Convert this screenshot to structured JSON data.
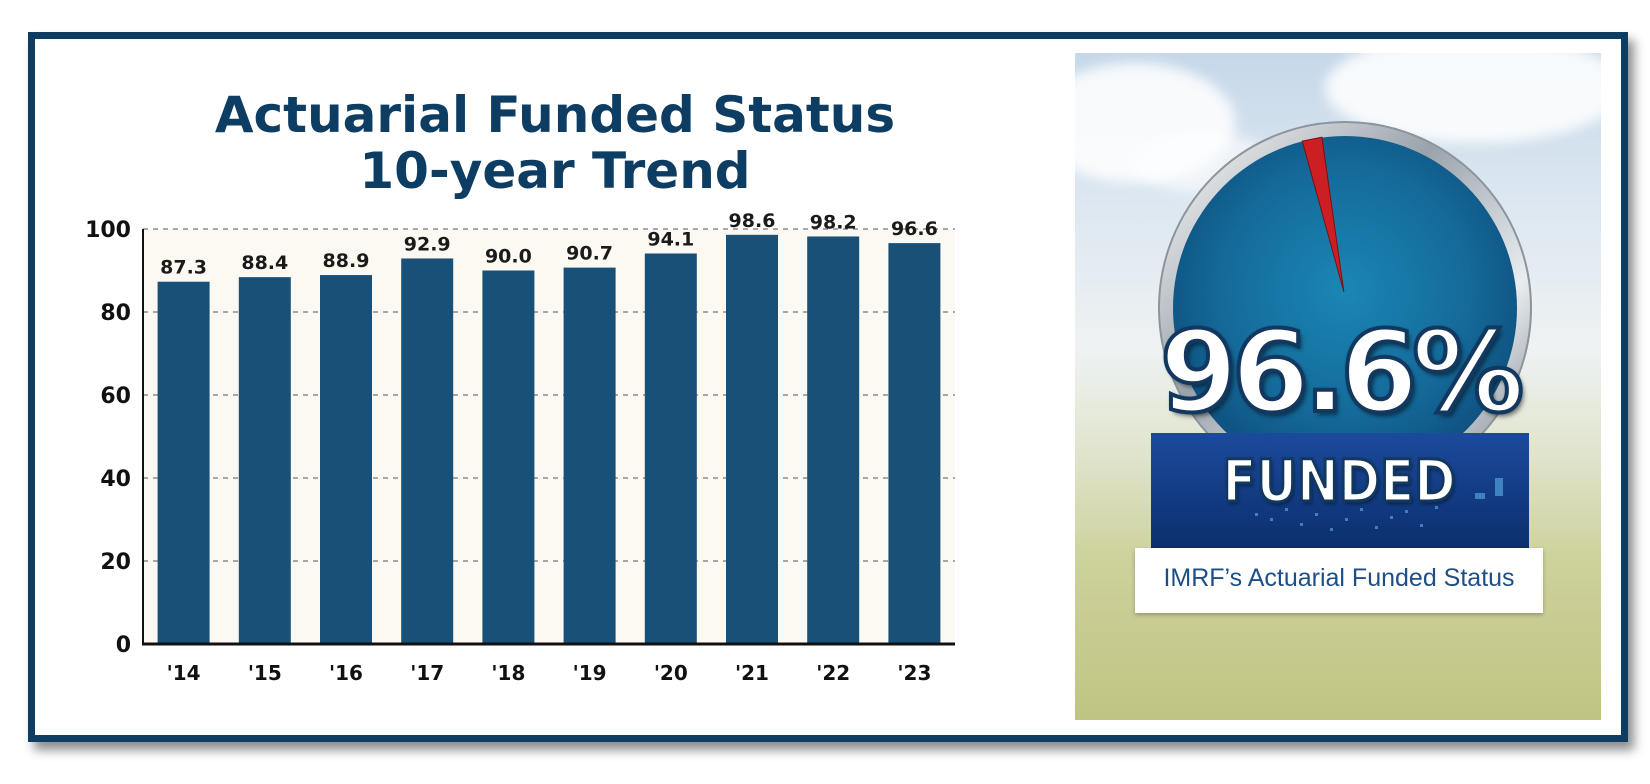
{
  "chart_data": {
    "type": "bar",
    "title": [
      "Actuarial Funded Status",
      "10-year Trend"
    ],
    "categories": [
      "'14",
      "'15",
      "'16",
      "'17",
      "'18",
      "'19",
      "'20",
      "'21",
      "'22",
      "'23"
    ],
    "values": [
      87.3,
      88.4,
      88.9,
      92.9,
      90.0,
      90.7,
      94.1,
      98.6,
      98.2,
      96.6
    ],
    "value_labels": [
      "87.3",
      "88.4",
      "88.9",
      "92.9",
      "90.0",
      "90.7",
      "94.1",
      "98.6",
      "98.2",
      "96.6"
    ],
    "xlabel": "",
    "ylabel": "",
    "ylim": [
      0,
      100
    ],
    "yticks": [
      0,
      20,
      40,
      60,
      80,
      100
    ],
    "grid": "dashed horizontal",
    "bar_color": "#195078"
  },
  "infographic": {
    "percent": "96.6%",
    "label": "FUNDED",
    "caption": "IMRF’s Actuarial Funded Status",
    "gauge_value": 96.6
  },
  "colors": {
    "frame": "#0d3d63",
    "title": "#0d3d63",
    "plot_background": "#fbf9f2",
    "needle": "#cc1f23",
    "caption": "#1d4f86"
  }
}
